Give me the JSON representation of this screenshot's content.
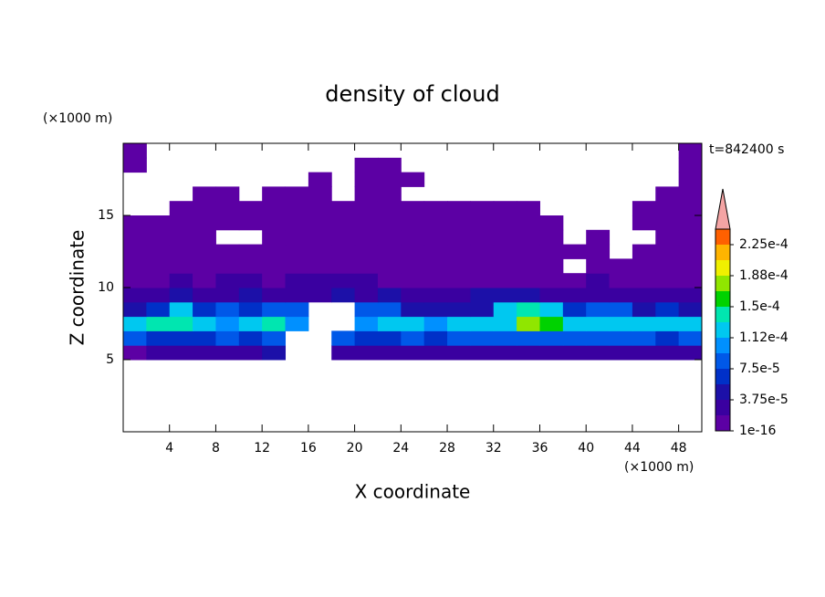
{
  "chart_data": {
    "type": "contour",
    "title": "density of cloud",
    "xlabel": "X coordinate",
    "ylabel": "Z coordinate",
    "x_unit": "(×1000 m)",
    "y_unit": "(×1000 m)",
    "annotation": "t=842400 s",
    "xlim": [
      0,
      50
    ],
    "ylim": [
      0,
      20
    ],
    "xticks": [
      4,
      8,
      12,
      16,
      20,
      24,
      28,
      32,
      36,
      40,
      44,
      48
    ],
    "yticks": [
      5,
      10,
      15
    ],
    "x": [
      1,
      3,
      5,
      7,
      9,
      11,
      13,
      15,
      17,
      19,
      21,
      23,
      25,
      27,
      29,
      31,
      33,
      35,
      37,
      39,
      41,
      43,
      45,
      47,
      49
    ],
    "z": [
      5.5,
      6.5,
      7.5,
      8.5,
      9.5,
      10.5,
      11.5,
      12.5,
      13.5,
      14.5,
      15.5,
      16.5,
      17.5,
      18.5,
      19.5
    ],
    "values": [
      [
        5e-06,
        2.5e-05,
        2.5e-05,
        2.5e-05,
        2.5e-05,
        2.5e-05,
        4.5e-05,
        null,
        null,
        2.5e-05,
        2.5e-05,
        2.5e-05,
        2.5e-05,
        2.5e-05,
        2.5e-05,
        2.5e-05,
        2.5e-05,
        2.5e-05,
        2.5e-05,
        2.5e-05,
        2.5e-05,
        2.5e-05,
        2.5e-05,
        2.5e-05,
        2.5e-05
      ],
      [
        8.5e-05,
        6.5e-05,
        6.5e-05,
        6.5e-05,
        8.5e-05,
        6.5e-05,
        8.5e-05,
        null,
        null,
        8.5e-05,
        6.5e-05,
        6.5e-05,
        8.5e-05,
        6.5e-05,
        8.5e-05,
        8.5e-05,
        8.5e-05,
        8.5e-05,
        8.5e-05,
        8.5e-05,
        8.5e-05,
        8.5e-05,
        8.5e-05,
        6.5e-05,
        8.5e-05
      ],
      [
        0.00012,
        0.00014,
        0.00014,
        0.00012,
        0.0001,
        0.00012,
        0.00014,
        0.0001,
        null,
        null,
        0.0001,
        0.00012,
        0.00012,
        0.0001,
        0.00012,
        0.00012,
        0.00012,
        0.00018,
        0.00016,
        0.00012,
        0.00012,
        0.00012,
        0.00012,
        0.00012,
        0.00012
      ],
      [
        4.5e-05,
        6.5e-05,
        0.00012,
        6.5e-05,
        8.5e-05,
        6.5e-05,
        8.5e-05,
        8.5e-05,
        null,
        null,
        8.5e-05,
        8.5e-05,
        4.5e-05,
        4.5e-05,
        4.5e-05,
        4.5e-05,
        0.00012,
        0.00014,
        0.00012,
        6.5e-05,
        8.5e-05,
        8.5e-05,
        4.5e-05,
        6.5e-05,
        4.5e-05
      ],
      [
        2.5e-05,
        2.5e-05,
        4.5e-05,
        2.5e-05,
        2.5e-05,
        4.5e-05,
        2.5e-05,
        2.5e-05,
        2.5e-05,
        4.5e-05,
        2.5e-05,
        4.5e-05,
        2.5e-05,
        2.5e-05,
        2.5e-05,
        4.5e-05,
        4.5e-05,
        4.5e-05,
        2.5e-05,
        2.5e-05,
        2.5e-05,
        2.5e-05,
        2.5e-05,
        2.5e-05,
        2.5e-05
      ],
      [
        5e-06,
        5e-06,
        2.5e-05,
        5e-06,
        2.5e-05,
        2.5e-05,
        5e-06,
        2.5e-05,
        2.5e-05,
        2.5e-05,
        2.5e-05,
        5e-06,
        5e-06,
        5e-06,
        5e-06,
        5e-06,
        5e-06,
        5e-06,
        5e-06,
        5e-06,
        2.5e-05,
        5e-06,
        5e-06,
        5e-06,
        5e-06
      ],
      [
        5e-06,
        5e-06,
        5e-06,
        5e-06,
        5e-06,
        5e-06,
        5e-06,
        5e-06,
        5e-06,
        5e-06,
        5e-06,
        5e-06,
        5e-06,
        5e-06,
        5e-06,
        5e-06,
        5e-06,
        5e-06,
        5e-06,
        null,
        5e-06,
        5e-06,
        5e-06,
        5e-06,
        5e-06
      ],
      [
        5e-06,
        5e-06,
        5e-06,
        5e-06,
        5e-06,
        5e-06,
        5e-06,
        5e-06,
        5e-06,
        5e-06,
        5e-06,
        5e-06,
        5e-06,
        5e-06,
        5e-06,
        5e-06,
        5e-06,
        5e-06,
        5e-06,
        5e-06,
        5e-06,
        null,
        5e-06,
        5e-06,
        5e-06
      ],
      [
        5e-06,
        5e-06,
        5e-06,
        5e-06,
        null,
        null,
        5e-06,
        5e-06,
        5e-06,
        5e-06,
        5e-06,
        5e-06,
        5e-06,
        5e-06,
        5e-06,
        5e-06,
        5e-06,
        5e-06,
        5e-06,
        null,
        5e-06,
        null,
        null,
        5e-06,
        5e-06
      ],
      [
        5e-06,
        5e-06,
        5e-06,
        5e-06,
        5e-06,
        5e-06,
        5e-06,
        5e-06,
        5e-06,
        5e-06,
        5e-06,
        5e-06,
        5e-06,
        5e-06,
        5e-06,
        5e-06,
        5e-06,
        5e-06,
        5e-06,
        null,
        null,
        null,
        5e-06,
        5e-06,
        5e-06
      ],
      [
        null,
        null,
        5e-06,
        5e-06,
        5e-06,
        5e-06,
        5e-06,
        5e-06,
        5e-06,
        5e-06,
        5e-06,
        5e-06,
        5e-06,
        5e-06,
        5e-06,
        5e-06,
        5e-06,
        5e-06,
        null,
        null,
        null,
        null,
        5e-06,
        5e-06,
        5e-06
      ],
      [
        null,
        null,
        null,
        5e-06,
        5e-06,
        null,
        5e-06,
        5e-06,
        5e-06,
        null,
        5e-06,
        5e-06,
        null,
        null,
        null,
        null,
        null,
        null,
        null,
        null,
        null,
        null,
        null,
        5e-06,
        5e-06
      ],
      [
        null,
        null,
        null,
        null,
        null,
        null,
        null,
        null,
        5e-06,
        null,
        5e-06,
        5e-06,
        5e-06,
        null,
        null,
        null,
        null,
        null,
        null,
        null,
        null,
        null,
        null,
        null,
        5e-06
      ],
      [
        5e-06,
        null,
        null,
        null,
        null,
        null,
        null,
        null,
        null,
        null,
        5e-06,
        5e-06,
        null,
        null,
        null,
        null,
        null,
        null,
        null,
        null,
        null,
        null,
        null,
        null,
        5e-06
      ],
      [
        5e-06,
        null,
        null,
        null,
        null,
        null,
        null,
        null,
        null,
        null,
        null,
        null,
        null,
        null,
        null,
        null,
        null,
        null,
        null,
        null,
        null,
        null,
        null,
        null,
        5e-06
      ]
    ],
    "colorbar": {
      "levels": [
        1e-16,
        1.875e-05,
        3.75e-05,
        5.625e-05,
        7.5e-05,
        9.375e-05,
        0.0001125,
        0.00013125,
        0.00015,
        0.00016875,
        0.0001875,
        0.00020625,
        0.000225,
        0.00024375
      ],
      "ticks": [
        1e-16,
        {
          "value": 3.75e-05,
          "label": "3.75e-5"
        },
        {
          "value": 7.5e-05,
          "label": "7.5e-5"
        },
        {
          "value": 0.0001125,
          "label": "1.12e-4"
        },
        {
          "value": 0.00015,
          "label": "1.5e-4"
        },
        {
          "value": 0.0001875,
          "label": "1.88e-4"
        },
        {
          "value": 0.000225,
          "label": "2.25e-4"
        }
      ],
      "colors": [
        "#5c00a4",
        "#3a00a0",
        "#1c10a8",
        "#0030c8",
        "#0058e8",
        "#0090ff",
        "#00c8f0",
        "#00e6b0",
        "#00d200",
        "#90e600",
        "#f0f000",
        "#ffb400",
        "#ff6000"
      ],
      "extend_color": "#f4a4a4"
    }
  }
}
